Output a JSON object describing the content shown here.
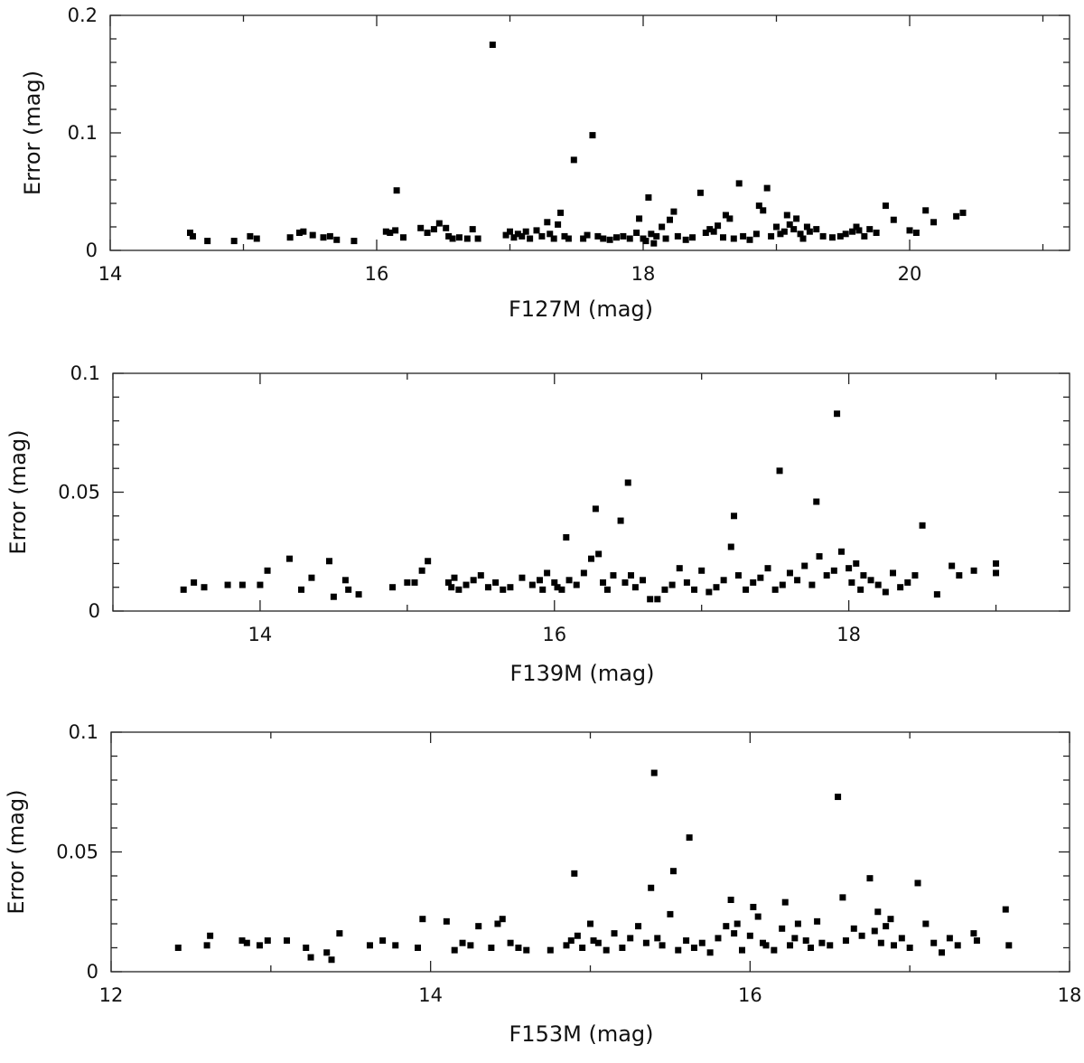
{
  "chart_data": [
    {
      "type": "scatter",
      "xlabel": "F127M (mag)",
      "ylabel": "Error (mag)",
      "xlim": [
        14,
        21.2
      ],
      "ylim": [
        0,
        0.2
      ],
      "xticks": [
        14,
        16,
        18,
        20
      ],
      "xtick_labels": [
        "14",
        "16",
        "18",
        "20"
      ],
      "yticks": [
        0,
        0.1,
        0.2
      ],
      "ytick_labels": [
        "0",
        "0.1",
        "0.2"
      ],
      "grid": false,
      "marker": "square",
      "color": "#000000",
      "points": [
        [
          14.6,
          0.015
        ],
        [
          14.62,
          0.012
        ],
        [
          14.73,
          0.008
        ],
        [
          14.93,
          0.008
        ],
        [
          15.05,
          0.012
        ],
        [
          15.1,
          0.01
        ],
        [
          15.35,
          0.011
        ],
        [
          15.42,
          0.015
        ],
        [
          15.45,
          0.016
        ],
        [
          15.52,
          0.013
        ],
        [
          15.6,
          0.011
        ],
        [
          15.65,
          0.012
        ],
        [
          15.7,
          0.009
        ],
        [
          15.83,
          0.008
        ],
        [
          16.07,
          0.016
        ],
        [
          16.1,
          0.015
        ],
        [
          16.14,
          0.017
        ],
        [
          16.15,
          0.051
        ],
        [
          16.2,
          0.011
        ],
        [
          16.33,
          0.019
        ],
        [
          16.38,
          0.015
        ],
        [
          16.43,
          0.018
        ],
        [
          16.47,
          0.023
        ],
        [
          16.52,
          0.019
        ],
        [
          16.54,
          0.012
        ],
        [
          16.57,
          0.01
        ],
        [
          16.62,
          0.011
        ],
        [
          16.68,
          0.01
        ],
        [
          16.72,
          0.018
        ],
        [
          16.76,
          0.01
        ],
        [
          16.87,
          0.175
        ],
        [
          16.97,
          0.013
        ],
        [
          17.0,
          0.016
        ],
        [
          17.03,
          0.011
        ],
        [
          17.06,
          0.014
        ],
        [
          17.09,
          0.012
        ],
        [
          17.12,
          0.016
        ],
        [
          17.15,
          0.01
        ],
        [
          17.2,
          0.017
        ],
        [
          17.24,
          0.012
        ],
        [
          17.28,
          0.024
        ],
        [
          17.3,
          0.014
        ],
        [
          17.33,
          0.01
        ],
        [
          17.36,
          0.022
        ],
        [
          17.38,
          0.032
        ],
        [
          17.41,
          0.012
        ],
        [
          17.44,
          0.01
        ],
        [
          17.48,
          0.077
        ],
        [
          17.55,
          0.01
        ],
        [
          17.58,
          0.013
        ],
        [
          17.62,
          0.098
        ],
        [
          17.66,
          0.012
        ],
        [
          17.7,
          0.01
        ],
        [
          17.75,
          0.009
        ],
        [
          17.8,
          0.011
        ],
        [
          17.85,
          0.012
        ],
        [
          17.9,
          0.01
        ],
        [
          17.95,
          0.015
        ],
        [
          17.97,
          0.027
        ],
        [
          18.0,
          0.01
        ],
        [
          18.02,
          0.008
        ],
        [
          18.04,
          0.045
        ],
        [
          18.06,
          0.014
        ],
        [
          18.08,
          0.006
        ],
        [
          18.1,
          0.012
        ],
        [
          18.14,
          0.02
        ],
        [
          18.17,
          0.01
        ],
        [
          18.2,
          0.026
        ],
        [
          18.23,
          0.033
        ],
        [
          18.26,
          0.012
        ],
        [
          18.32,
          0.009
        ],
        [
          18.37,
          0.011
        ],
        [
          18.43,
          0.049
        ],
        [
          18.47,
          0.015
        ],
        [
          18.5,
          0.018
        ],
        [
          18.53,
          0.016
        ],
        [
          18.56,
          0.021
        ],
        [
          18.6,
          0.011
        ],
        [
          18.62,
          0.03
        ],
        [
          18.65,
          0.027
        ],
        [
          18.68,
          0.01
        ],
        [
          18.72,
          0.057
        ],
        [
          18.75,
          0.012
        ],
        [
          18.8,
          0.009
        ],
        [
          18.85,
          0.014
        ],
        [
          18.87,
          0.038
        ],
        [
          18.9,
          0.034
        ],
        [
          18.93,
          0.053
        ],
        [
          18.96,
          0.012
        ],
        [
          19.0,
          0.02
        ],
        [
          19.03,
          0.014
        ],
        [
          19.06,
          0.016
        ],
        [
          19.08,
          0.03
        ],
        [
          19.1,
          0.022
        ],
        [
          19.13,
          0.018
        ],
        [
          19.15,
          0.027
        ],
        [
          19.18,
          0.014
        ],
        [
          19.2,
          0.01
        ],
        [
          19.23,
          0.02
        ],
        [
          19.25,
          0.016
        ],
        [
          19.3,
          0.018
        ],
        [
          19.35,
          0.012
        ],
        [
          19.42,
          0.011
        ],
        [
          19.48,
          0.012
        ],
        [
          19.52,
          0.014
        ],
        [
          19.57,
          0.016
        ],
        [
          19.6,
          0.02
        ],
        [
          19.62,
          0.017
        ],
        [
          19.66,
          0.012
        ],
        [
          19.7,
          0.018
        ],
        [
          19.75,
          0.015
        ],
        [
          19.82,
          0.038
        ],
        [
          19.88,
          0.026
        ],
        [
          20.0,
          0.017
        ],
        [
          20.05,
          0.015
        ],
        [
          20.12,
          0.034
        ],
        [
          20.18,
          0.024
        ],
        [
          20.35,
          0.029
        ],
        [
          20.4,
          0.032
        ]
      ]
    },
    {
      "type": "scatter",
      "xlabel": "F139M (mag)",
      "ylabel": "Error (mag)",
      "xlim": [
        13,
        19.5
      ],
      "ylim": [
        0,
        0.1
      ],
      "xticks": [
        14,
        16,
        18
      ],
      "xtick_labels": [
        "14",
        "16",
        "18"
      ],
      "yticks": [
        0,
        0.05,
        0.1
      ],
      "ytick_labels": [
        "0",
        "0.05",
        "0.1"
      ],
      "grid": false,
      "marker": "square",
      "color": "#000000",
      "points": [
        [
          13.48,
          0.009
        ],
        [
          13.55,
          0.012
        ],
        [
          13.62,
          0.01
        ],
        [
          13.78,
          0.011
        ],
        [
          13.88,
          0.011
        ],
        [
          14.0,
          0.011
        ],
        [
          14.05,
          0.017
        ],
        [
          14.2,
          0.022
        ],
        [
          14.28,
          0.009
        ],
        [
          14.35,
          0.014
        ],
        [
          14.47,
          0.021
        ],
        [
          14.5,
          0.006
        ],
        [
          14.58,
          0.013
        ],
        [
          14.6,
          0.009
        ],
        [
          14.67,
          0.007
        ],
        [
          14.9,
          0.01
        ],
        [
          15.0,
          0.012
        ],
        [
          15.05,
          0.012
        ],
        [
          15.1,
          0.017
        ],
        [
          15.14,
          0.021
        ],
        [
          15.28,
          0.012
        ],
        [
          15.3,
          0.01
        ],
        [
          15.32,
          0.014
        ],
        [
          15.35,
          0.009
        ],
        [
          15.4,
          0.011
        ],
        [
          15.45,
          0.013
        ],
        [
          15.5,
          0.015
        ],
        [
          15.55,
          0.01
        ],
        [
          15.6,
          0.012
        ],
        [
          15.65,
          0.009
        ],
        [
          15.7,
          0.01
        ],
        [
          15.78,
          0.014
        ],
        [
          15.85,
          0.011
        ],
        [
          15.9,
          0.013
        ],
        [
          15.92,
          0.009
        ],
        [
          15.95,
          0.016
        ],
        [
          16.0,
          0.012
        ],
        [
          16.02,
          0.01
        ],
        [
          16.05,
          0.009
        ],
        [
          16.08,
          0.031
        ],
        [
          16.1,
          0.013
        ],
        [
          16.15,
          0.011
        ],
        [
          16.2,
          0.016
        ],
        [
          16.25,
          0.022
        ],
        [
          16.28,
          0.043
        ],
        [
          16.3,
          0.024
        ],
        [
          16.33,
          0.012
        ],
        [
          16.36,
          0.009
        ],
        [
          16.4,
          0.015
        ],
        [
          16.45,
          0.038
        ],
        [
          16.48,
          0.012
        ],
        [
          16.5,
          0.054
        ],
        [
          16.52,
          0.015
        ],
        [
          16.55,
          0.01
        ],
        [
          16.6,
          0.013
        ],
        [
          16.65,
          0.005
        ],
        [
          16.7,
          0.005
        ],
        [
          16.75,
          0.009
        ],
        [
          16.8,
          0.011
        ],
        [
          16.85,
          0.018
        ],
        [
          16.9,
          0.012
        ],
        [
          16.95,
          0.009
        ],
        [
          17.0,
          0.017
        ],
        [
          17.05,
          0.008
        ],
        [
          17.1,
          0.01
        ],
        [
          17.15,
          0.013
        ],
        [
          17.2,
          0.027
        ],
        [
          17.22,
          0.04
        ],
        [
          17.25,
          0.015
        ],
        [
          17.3,
          0.009
        ],
        [
          17.35,
          0.012
        ],
        [
          17.4,
          0.014
        ],
        [
          17.45,
          0.018
        ],
        [
          17.5,
          0.009
        ],
        [
          17.53,
          0.059
        ],
        [
          17.55,
          0.011
        ],
        [
          17.6,
          0.016
        ],
        [
          17.65,
          0.013
        ],
        [
          17.7,
          0.019
        ],
        [
          17.75,
          0.011
        ],
        [
          17.78,
          0.046
        ],
        [
          17.8,
          0.023
        ],
        [
          17.85,
          0.015
        ],
        [
          17.9,
          0.017
        ],
        [
          17.92,
          0.083
        ],
        [
          17.95,
          0.025
        ],
        [
          18.0,
          0.018
        ],
        [
          18.02,
          0.012
        ],
        [
          18.05,
          0.02
        ],
        [
          18.08,
          0.009
        ],
        [
          18.1,
          0.015
        ],
        [
          18.15,
          0.013
        ],
        [
          18.2,
          0.011
        ],
        [
          18.25,
          0.008
        ],
        [
          18.3,
          0.016
        ],
        [
          18.35,
          0.01
        ],
        [
          18.4,
          0.012
        ],
        [
          18.45,
          0.015
        ],
        [
          18.5,
          0.036
        ],
        [
          18.6,
          0.007
        ],
        [
          18.7,
          0.019
        ],
        [
          18.75,
          0.015
        ],
        [
          18.85,
          0.017
        ],
        [
          19.0,
          0.02
        ],
        [
          19.0,
          0.016
        ]
      ]
    },
    {
      "type": "scatter",
      "xlabel": "F153M (mag)",
      "ylabel": "Error (mag)",
      "xlim": [
        12,
        18
      ],
      "ylim": [
        0,
        0.1
      ],
      "xticks": [
        12,
        14,
        16,
        18
      ],
      "xtick_labels": [
        "12",
        "14",
        "16",
        "18"
      ],
      "yticks": [
        0,
        0.05,
        0.1
      ],
      "ytick_labels": [
        "0",
        "0.05",
        "0.1"
      ],
      "grid": false,
      "marker": "square",
      "color": "#000000",
      "points": [
        [
          12.42,
          0.01
        ],
        [
          12.6,
          0.011
        ],
        [
          12.62,
          0.015
        ],
        [
          12.82,
          0.013
        ],
        [
          12.85,
          0.012
        ],
        [
          12.93,
          0.011
        ],
        [
          12.98,
          0.013
        ],
        [
          13.1,
          0.013
        ],
        [
          13.22,
          0.01
        ],
        [
          13.25,
          0.006
        ],
        [
          13.35,
          0.008
        ],
        [
          13.38,
          0.005
        ],
        [
          13.43,
          0.016
        ],
        [
          13.62,
          0.011
        ],
        [
          13.7,
          0.013
        ],
        [
          13.78,
          0.011
        ],
        [
          13.92,
          0.01
        ],
        [
          13.95,
          0.022
        ],
        [
          14.1,
          0.021
        ],
        [
          14.15,
          0.009
        ],
        [
          14.2,
          0.012
        ],
        [
          14.25,
          0.011
        ],
        [
          14.3,
          0.019
        ],
        [
          14.38,
          0.01
        ],
        [
          14.42,
          0.02
        ],
        [
          14.45,
          0.022
        ],
        [
          14.5,
          0.012
        ],
        [
          14.55,
          0.01
        ],
        [
          14.6,
          0.009
        ],
        [
          14.75,
          0.009
        ],
        [
          14.85,
          0.011
        ],
        [
          14.88,
          0.013
        ],
        [
          14.9,
          0.041
        ],
        [
          14.92,
          0.015
        ],
        [
          14.95,
          0.01
        ],
        [
          15.0,
          0.02
        ],
        [
          15.02,
          0.013
        ],
        [
          15.05,
          0.012
        ],
        [
          15.1,
          0.009
        ],
        [
          15.15,
          0.016
        ],
        [
          15.2,
          0.01
        ],
        [
          15.25,
          0.014
        ],
        [
          15.3,
          0.019
        ],
        [
          15.35,
          0.012
        ],
        [
          15.38,
          0.035
        ],
        [
          15.4,
          0.083
        ],
        [
          15.42,
          0.014
        ],
        [
          15.45,
          0.011
        ],
        [
          15.5,
          0.024
        ],
        [
          15.52,
          0.042
        ],
        [
          15.55,
          0.009
        ],
        [
          15.6,
          0.013
        ],
        [
          15.62,
          0.056
        ],
        [
          15.65,
          0.01
        ],
        [
          15.7,
          0.012
        ],
        [
          15.75,
          0.008
        ],
        [
          15.8,
          0.014
        ],
        [
          15.85,
          0.019
        ],
        [
          15.88,
          0.03
        ],
        [
          15.9,
          0.016
        ],
        [
          15.92,
          0.02
        ],
        [
          15.95,
          0.009
        ],
        [
          16.0,
          0.015
        ],
        [
          16.02,
          0.027
        ],
        [
          16.05,
          0.023
        ],
        [
          16.08,
          0.012
        ],
        [
          16.1,
          0.011
        ],
        [
          16.15,
          0.009
        ],
        [
          16.2,
          0.018
        ],
        [
          16.22,
          0.029
        ],
        [
          16.25,
          0.011
        ],
        [
          16.28,
          0.014
        ],
        [
          16.3,
          0.02
        ],
        [
          16.35,
          0.013
        ],
        [
          16.38,
          0.01
        ],
        [
          16.42,
          0.021
        ],
        [
          16.45,
          0.012
        ],
        [
          16.5,
          0.011
        ],
        [
          16.55,
          0.073
        ],
        [
          16.58,
          0.031
        ],
        [
          16.6,
          0.013
        ],
        [
          16.65,
          0.018
        ],
        [
          16.7,
          0.015
        ],
        [
          16.75,
          0.039
        ],
        [
          16.78,
          0.017
        ],
        [
          16.8,
          0.025
        ],
        [
          16.82,
          0.012
        ],
        [
          16.85,
          0.019
        ],
        [
          16.88,
          0.022
        ],
        [
          16.9,
          0.011
        ],
        [
          16.95,
          0.014
        ],
        [
          17.0,
          0.01
        ],
        [
          17.05,
          0.037
        ],
        [
          17.1,
          0.02
        ],
        [
          17.15,
          0.012
        ],
        [
          17.2,
          0.008
        ],
        [
          17.25,
          0.014
        ],
        [
          17.3,
          0.011
        ],
        [
          17.4,
          0.016
        ],
        [
          17.42,
          0.013
        ],
        [
          17.6,
          0.026
        ],
        [
          17.62,
          0.011
        ]
      ]
    }
  ]
}
